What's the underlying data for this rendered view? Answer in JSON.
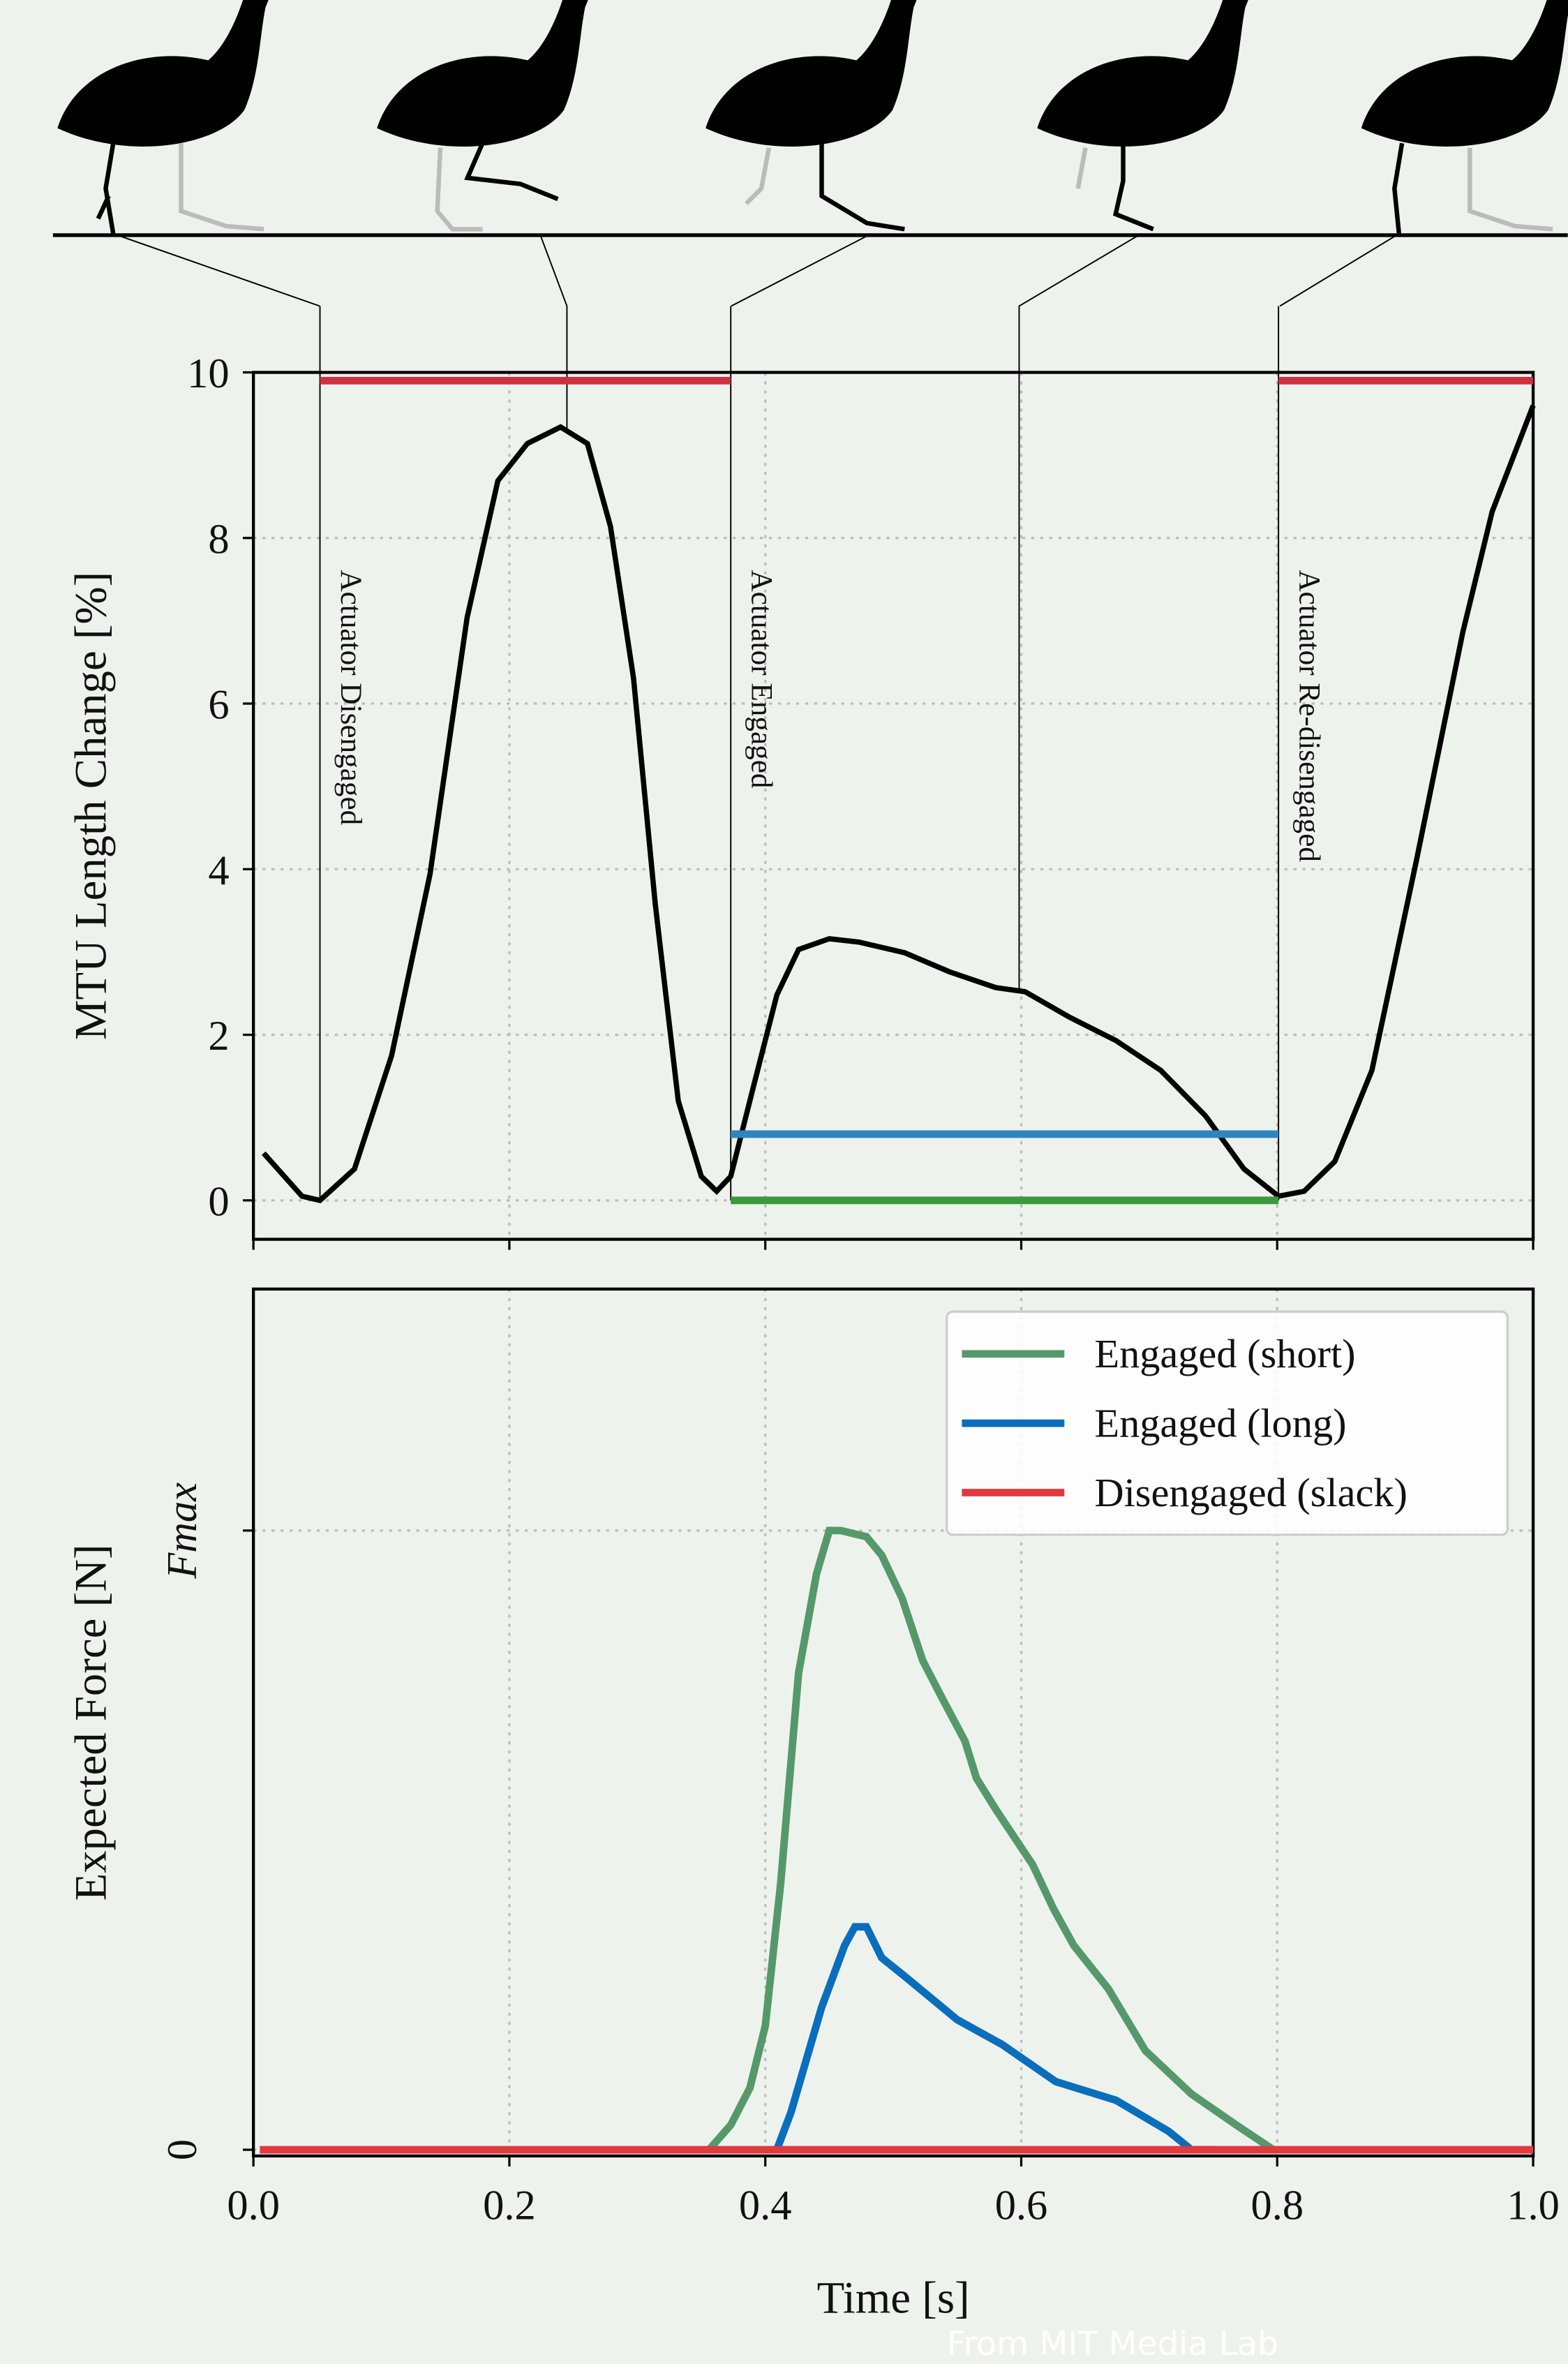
{
  "chart_data": [
    {
      "type": "line",
      "ylabel": "MTU Length Change [%]",
      "xlim": [
        0,
        1
      ],
      "xticks": [
        0,
        0.2,
        0.4,
        0.6,
        0.8,
        1
      ],
      "ylim": [
        -0.47,
        10
      ],
      "yticks": [
        0,
        2,
        4,
        6,
        8,
        10
      ],
      "grid": true,
      "series": [
        {
          "color": "#000000",
          "x": [
            0.008,
            0.038,
            0.052,
            0.079,
            0.108,
            0.138,
            0.167,
            0.191,
            0.214,
            0.24,
            0.261,
            0.279,
            0.297,
            0.314,
            0.332,
            0.35,
            0.362,
            0.373,
            0.391,
            0.409,
            0.426,
            0.45,
            0.473,
            0.509,
            0.544,
            0.58,
            0.603,
            0.638,
            0.674,
            0.709,
            0.744,
            0.774,
            0.801,
            0.821,
            0.845,
            0.874,
            0.909,
            0.945,
            0.968,
            1.0
          ],
          "values": [
            0.57,
            0.05,
            0,
            0.38,
            1.75,
            3.94,
            7.04,
            8.69,
            9.14,
            9.34,
            9.14,
            8.14,
            6.31,
            3.58,
            1.2,
            0.29,
            0.11,
            0.29,
            1.39,
            2.48,
            3.03,
            3.16,
            3.12,
            2.99,
            2.76,
            2.57,
            2.52,
            2.21,
            1.93,
            1.57,
            1.02,
            0.38,
            0.05,
            0.11,
            0.47,
            1.57,
            4.12,
            6.86,
            8.32,
            9.6
          ]
        },
        {
          "color": "#d0303f",
          "x": [
            0.052,
            0.373
          ],
          "values": [
            9.9,
            9.9
          ]
        },
        {
          "color": "#d0303f",
          "x": [
            0.801,
            1.0
          ],
          "values": [
            9.9,
            9.9
          ]
        },
        {
          "color": "#2e86c1",
          "x": [
            0.373,
            0.801
          ],
          "values": [
            0.8,
            0.8
          ]
        },
        {
          "color": "#3a9a3a",
          "x": [
            0.373,
            0.801
          ],
          "values": [
            0,
            0
          ]
        }
      ],
      "annotations": [
        {
          "x": 0.052,
          "text": "Actuator Disengaged"
        },
        {
          "x": 0.373,
          "text": "Actuator Engaged"
        },
        {
          "x": 0.801,
          "text": "Actuator Re-disengaged"
        }
      ]
    },
    {
      "type": "line",
      "ylabel": "Expected Force [N]",
      "xlabel": "Time [s]",
      "xlim": [
        0,
        1
      ],
      "xticks": [
        {
          "value": 0,
          "label": "0.0"
        },
        0.2,
        0.4,
        0.6,
        0.8,
        {
          "value": 1,
          "label": "1.0"
        }
      ],
      "ylim": [
        -0.01,
        1.39
      ],
      "yticks": [
        0,
        {
          "value": 1,
          "label": "Fmax"
        }
      ],
      "grid": true,
      "legend": "upper right",
      "series": [
        {
          "name": "Engaged (short)",
          "color": "#55996a",
          "x": [
            0.356,
            0.373,
            0.388,
            0.4,
            0.412,
            0.426,
            0.44,
            0.45,
            0.459,
            0.479,
            0.491,
            0.507,
            0.523,
            0.538,
            0.556,
            0.565,
            0.58,
            0.609,
            0.625,
            0.641,
            0.668,
            0.697,
            0.733,
            0.768,
            0.797
          ],
          "values": [
            0,
            0.04,
            0.1,
            0.2,
            0.43,
            0.77,
            0.93,
            1.0,
            1.0,
            0.99,
            0.96,
            0.89,
            0.79,
            0.73,
            0.66,
            0.6,
            0.55,
            0.46,
            0.39,
            0.33,
            0.26,
            0.16,
            0.09,
            0.04,
            0
          ]
        },
        {
          "name": "Engaged (long)",
          "color": "#0a6ebd",
          "x": [
            0.409,
            0.42,
            0.444,
            0.462,
            0.47,
            0.479,
            0.491,
            0.509,
            0.55,
            0.585,
            0.627,
            0.674,
            0.715,
            0.733,
            0.75
          ],
          "values": [
            0,
            0.06,
            0.23,
            0.33,
            0.36,
            0.36,
            0.31,
            0.28,
            0.21,
            0.17,
            0.11,
            0.08,
            0.03,
            0,
            0
          ]
        },
        {
          "name": "Disengaged (slack)",
          "color": "#e03a3e",
          "x": [
            0.005,
            1.0
          ],
          "values": [
            0,
            0
          ]
        }
      ]
    }
  ],
  "source": "From MIT Media Lab"
}
